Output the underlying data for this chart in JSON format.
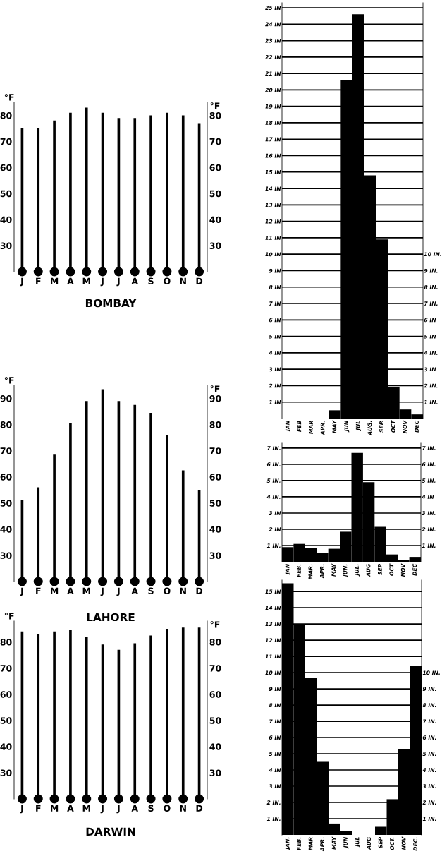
{
  "chart_data": [
    {
      "type": "bar",
      "title": "BOMBAY",
      "categories": [
        "J",
        "F",
        "M",
        "A",
        "M",
        "J",
        "J",
        "A",
        "S",
        "O",
        "N",
        "D"
      ],
      "values": [
        75,
        75,
        78,
        81,
        83,
        81,
        79,
        79,
        80,
        81,
        80,
        77
      ],
      "color": "#000000",
      "ylabel": "°F",
      "y2label": "°F",
      "ylim": [
        20,
        85
      ],
      "yticks": [
        30,
        40,
        50,
        60,
        70,
        80
      ],
      "y2lim": [
        20,
        85
      ],
      "y2ticks": [
        30,
        40,
        50,
        60,
        70,
        80
      ]
    },
    {
      "type": "bar",
      "categories": [
        "JAN",
        "FEB",
        "MAR",
        "APR.",
        "MAY",
        "JUN",
        "JUL",
        "AUG.",
        "SEP.",
        "OCT",
        "NOV",
        "DEC"
      ],
      "values": [
        0,
        0,
        0,
        0,
        0.5,
        20.6,
        24.6,
        14.8,
        10.9,
        1.9,
        0.55,
        0.25
      ],
      "color": "#000000",
      "grid": "y",
      "ylim": [
        0,
        25.3
      ],
      "yticks": [
        {
          "value": 1,
          "label": "1 IN"
        },
        {
          "value": 2,
          "label": "2 IN"
        },
        {
          "value": 3,
          "label": "3 IN"
        },
        {
          "value": 4,
          "label": "4 IN"
        },
        {
          "value": 5,
          "label": "5 IN"
        },
        {
          "value": 6,
          "label": "6 IN"
        },
        {
          "value": 7,
          "label": "7 IN"
        },
        {
          "value": 8,
          "label": "8 IN"
        },
        {
          "value": 9,
          "label": "9 IN"
        },
        {
          "value": 10,
          "label": "10 IN"
        },
        {
          "value": 11,
          "label": "11 IN"
        },
        {
          "value": 12,
          "label": "12 IN"
        },
        {
          "value": 13,
          "label": "13 IN"
        },
        {
          "value": 14,
          "label": "14 IN"
        },
        {
          "value": 15,
          "label": "15 IN"
        },
        {
          "value": 16,
          "label": "16 IN"
        },
        {
          "value": 17,
          "label": "17 IN"
        },
        {
          "value": 18,
          "label": "18 IN"
        },
        {
          "value": 19,
          "label": "19 IN"
        },
        {
          "value": 20,
          "label": "20 IN"
        },
        {
          "value": 21,
          "label": "21 IN"
        },
        {
          "value": 22,
          "label": "22 IN"
        },
        {
          "value": 23,
          "label": "23 IN"
        },
        {
          "value": 24,
          "label": "24 IN"
        },
        {
          "value": 25,
          "label": "25 IN"
        }
      ],
      "y2lim": [
        0,
        25.3
      ],
      "y2ticks": [
        {
          "value": 1,
          "label": "1 IN."
        },
        {
          "value": 2,
          "label": "2 IN."
        },
        {
          "value": 3,
          "label": "3 IN"
        },
        {
          "value": 4,
          "label": "4 IN."
        },
        {
          "value": 5,
          "label": "5 IN"
        },
        {
          "value": 6,
          "label": "6 IN"
        },
        {
          "value": 7,
          "label": "7 IN."
        },
        {
          "value": 8,
          "label": "8 IN."
        },
        {
          "value": 9,
          "label": "9 IN."
        },
        {
          "value": 10,
          "label": "10 IN."
        }
      ]
    },
    {
      "type": "bar",
      "title": "LAHORE",
      "categories": [
        "J",
        "F",
        "M",
        "A",
        "M",
        "J",
        "J",
        "A",
        "S",
        "O",
        "N",
        "D"
      ],
      "values": [
        51,
        56,
        68.5,
        80.5,
        89,
        93.5,
        89,
        87.5,
        84.5,
        76,
        62.5,
        55
      ],
      "color": "#000000",
      "ylabel": "°F",
      "y2label": "°F",
      "ylim": [
        20,
        95
      ],
      "yticks": [
        30,
        40,
        50,
        60,
        70,
        80,
        90
      ],
      "y2lim": [
        20,
        95
      ],
      "y2ticks": [
        30,
        40,
        50,
        60,
        70,
        80,
        90
      ]
    },
    {
      "type": "bar",
      "categories": [
        "JAN",
        "FEB.",
        "MAR.",
        "APR.",
        "MAY",
        "JUN.",
        "JUL.",
        "AUG",
        "SEP",
        "OCT",
        "NOV",
        "DEC"
      ],
      "values": [
        0.9,
        1.1,
        0.85,
        0.55,
        0.8,
        1.85,
        6.7,
        4.9,
        2.15,
        0.45,
        0.1,
        0.3
      ],
      "color": "#000000",
      "grid": "y",
      "ylim": [
        0,
        7.3
      ],
      "yticks": [
        {
          "value": 1,
          "label": "1 IN."
        },
        {
          "value": 2,
          "label": "2 IN"
        },
        {
          "value": 3,
          "label": "3 IN"
        },
        {
          "value": 4,
          "label": "4 IN."
        },
        {
          "value": 5,
          "label": "5 IN."
        },
        {
          "value": 6,
          "label": "6 IN."
        },
        {
          "value": 7,
          "label": "7 IN."
        }
      ],
      "y2lim": [
        0,
        7.3
      ],
      "y2ticks": [
        {
          "value": 1,
          "label": "1 IN."
        },
        {
          "value": 2,
          "label": "2 IN."
        },
        {
          "value": 3,
          "label": "3 IN."
        },
        {
          "value": 4,
          "label": "4 IN"
        },
        {
          "value": 5,
          "label": "5 IN."
        },
        {
          "value": 6,
          "label": "6 IN."
        },
        {
          "value": 7,
          "label": "7 IN."
        }
      ]
    },
    {
      "type": "bar",
      "title": "DARWIN",
      "categories": [
        "J",
        "F",
        "M",
        "A",
        "M",
        "J",
        "J",
        "A",
        "S",
        "O",
        "N",
        "D"
      ],
      "values": [
        84,
        83,
        84,
        84.5,
        82,
        79,
        77,
        79.5,
        82.5,
        85,
        85.5,
        85.5
      ],
      "color": "#000000",
      "ylabel": "°F",
      "y2label": "°F",
      "ylim": [
        20,
        88
      ],
      "yticks": [
        30,
        40,
        50,
        60,
        70,
        80
      ],
      "y2lim": [
        20,
        88
      ],
      "y2ticks": [
        30,
        40,
        50,
        60,
        70,
        80
      ]
    },
    {
      "type": "bar",
      "categories": [
        "JAN.",
        "FEB.",
        "MAR",
        "APR.",
        "MAY",
        "JUN",
        "JUL",
        "AUG",
        "SEP",
        "OCT.",
        "NOV",
        "DEC."
      ],
      "values": [
        15.5,
        13,
        9.7,
        4.5,
        0.7,
        0.25,
        0,
        0,
        0.5,
        2.2,
        5.3,
        10.4
      ],
      "color": "#000000",
      "grid": "y",
      "ylim": [
        0,
        15.7
      ],
      "yticks": [
        {
          "value": 1,
          "label": "1 IN."
        },
        {
          "value": 2,
          "label": "2 IN."
        },
        {
          "value": 3,
          "label": "3 IN"
        },
        {
          "value": 4,
          "label": "4 IN"
        },
        {
          "value": 5,
          "label": "5 IN"
        },
        {
          "value": 6,
          "label": "6 IN"
        },
        {
          "value": 7,
          "label": "7 IN"
        },
        {
          "value": 8,
          "label": "8 IN"
        },
        {
          "value": 9,
          "label": "9 IN"
        },
        {
          "value": 10,
          "label": "10 IN"
        },
        {
          "value": 11,
          "label": "11 IN"
        },
        {
          "value": 12,
          "label": "12 IN"
        },
        {
          "value": 13,
          "label": "13 IN"
        },
        {
          "value": 14,
          "label": "14 IN"
        },
        {
          "value": 15,
          "label": "15 IN"
        }
      ],
      "y2lim": [
        0,
        15.7
      ],
      "y2ticks": [
        {
          "value": 1,
          "label": "1 IN."
        },
        {
          "value": 2,
          "label": "2 IN."
        },
        {
          "value": 3,
          "label": "3 IN."
        },
        {
          "value": 4,
          "label": "4 IN."
        },
        {
          "value": 5,
          "label": "5 IN."
        },
        {
          "value": 6,
          "label": "6 IN."
        },
        {
          "value": 7,
          "label": "7 IN."
        },
        {
          "value": 8,
          "label": "8 IN."
        },
        {
          "value": 9,
          "label": "9 IN."
        },
        {
          "value": 10,
          "label": "10 IN."
        }
      ]
    }
  ]
}
